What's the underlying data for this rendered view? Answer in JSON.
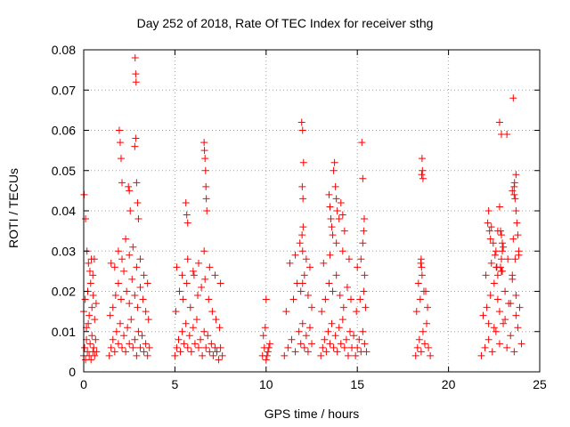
{
  "chart_data": {
    "type": "scatter",
    "title": "Day 252 of 2018, Rate Of TEC Index for receiver sthg",
    "xlabel": "GPS time / hours",
    "ylabel": "ROTI / TECUs",
    "xlim": [
      0,
      25
    ],
    "ylim": [
      0,
      0.08
    ],
    "xticks": [
      0,
      5,
      10,
      15,
      20,
      25
    ],
    "yticks": [
      0,
      0.01,
      0.02,
      0.03,
      0.04,
      0.05,
      0.06,
      0.07,
      0.08
    ],
    "ytick_labels": [
      "0",
      "0.01",
      "0.02",
      "0.03",
      "0.04",
      "0.05",
      "0.06",
      "0.07",
      "0.08"
    ],
    "grid": true,
    "marker": "+",
    "color": "#ff0000",
    "series": [
      {
        "name": "ROTI",
        "x": [
          0.0,
          0.05,
          0.1,
          0.15,
          0.2,
          0.25,
          0.3,
          0.35,
          0.4,
          0.45,
          0.5,
          0.55,
          0.6,
          0.65,
          0.7,
          0.0,
          0.08,
          0.15,
          0.22,
          0.3,
          0.38,
          0.45,
          0.52,
          0.6,
          0.68,
          0.02,
          0.1,
          0.18,
          0.26,
          0.34,
          0.42,
          0.5,
          0.58,
          1.4,
          1.5,
          1.6,
          1.7,
          1.8,
          1.9,
          2.0,
          2.1,
          2.2,
          2.3,
          2.4,
          2.5,
          2.6,
          2.7,
          2.8,
          2.9,
          3.0,
          3.1,
          3.2,
          3.3,
          3.4,
          3.5,
          3.6,
          1.45,
          1.6,
          1.75,
          1.9,
          2.05,
          2.2,
          2.35,
          2.5,
          2.65,
          2.8,
          2.95,
          3.1,
          3.25,
          3.4,
          3.55,
          1.5,
          1.7,
          1.9,
          2.1,
          2.3,
          2.5,
          2.7,
          2.9,
          3.1,
          3.3,
          3.5,
          1.95,
          2.0,
          2.05,
          2.1,
          2.45,
          2.5,
          2.55,
          2.8,
          2.85,
          2.9,
          2.95,
          3.0,
          2.82,
          2.85,
          2.87,
          5.0,
          5.1,
          5.2,
          5.3,
          5.4,
          5.5,
          5.6,
          5.7,
          5.8,
          5.9,
          6.0,
          6.1,
          6.2,
          6.3,
          6.4,
          6.5,
          6.6,
          6.7,
          6.8,
          6.9,
          7.0,
          7.1,
          7.2,
          7.3,
          7.4,
          7.5,
          7.6,
          5.05,
          5.25,
          5.45,
          5.65,
          5.85,
          6.05,
          6.25,
          6.45,
          6.65,
          6.85,
          7.05,
          7.25,
          7.45,
          5.1,
          5.4,
          5.7,
          6.0,
          6.3,
          6.6,
          6.9,
          7.2,
          7.5,
          5.6,
          5.65,
          5.7,
          6.6,
          6.62,
          6.65,
          6.68,
          6.7,
          6.72,
          6.75,
          9.8,
          9.9,
          10.0,
          10.1,
          10.2,
          9.85,
          10.05,
          10.15,
          9.95,
          10.0,
          11.0,
          11.2,
          11.4,
          11.6,
          11.8,
          11.9,
          12.0,
          12.1,
          12.2,
          12.3,
          12.4,
          12.5,
          11.1,
          11.5,
          11.7,
          11.9,
          12.1,
          12.3,
          12.5,
          11.3,
          11.6,
          11.85,
          12.0,
          12.2,
          12.4,
          11.95,
          12.0,
          12.05,
          11.98,
          12.02,
          12.03,
          11.97,
          12.0,
          13.0,
          13.1,
          13.2,
          13.3,
          13.4,
          13.5,
          13.6,
          13.7,
          13.8,
          13.9,
          14.0,
          14.1,
          14.2,
          14.3,
          14.4,
          14.5,
          14.6,
          14.7,
          14.8,
          13.05,
          13.25,
          13.45,
          13.65,
          13.85,
          14.05,
          14.25,
          14.45,
          14.65,
          13.15,
          13.5,
          13.85,
          14.2,
          14.55,
          13.45,
          13.5,
          13.55,
          13.6,
          13.65,
          13.7,
          13.75,
          13.8,
          13.85,
          13.9,
          14.0,
          14.1,
          14.2,
          14.3,
          14.9,
          15.0,
          15.1,
          15.2,
          15.3,
          15.4,
          15.5,
          14.95,
          15.15,
          15.35,
          15.45,
          15.0,
          15.2,
          15.4,
          15.3,
          15.35,
          15.38,
          15.3,
          15.25,
          18.2,
          18.3,
          18.4,
          18.5,
          18.6,
          18.7,
          18.8,
          18.9,
          19.0,
          18.25,
          18.45,
          18.65,
          18.85,
          18.35,
          18.55,
          18.75,
          18.5,
          18.52,
          18.55,
          18.57,
          18.6,
          18.53,
          18.48,
          21.8,
          22.0,
          22.2,
          22.4,
          22.6,
          22.8,
          23.0,
          23.2,
          23.4,
          23.6,
          23.8,
          24.0,
          21.9,
          22.1,
          22.3,
          22.5,
          22.7,
          22.9,
          23.1,
          23.3,
          23.5,
          23.7,
          23.9,
          22.05,
          22.35,
          22.65,
          22.95,
          23.25,
          23.55,
          23.85,
          22.2,
          22.5,
          22.8,
          23.1,
          23.4,
          23.7,
          22.15,
          22.2,
          22.25,
          22.3,
          22.6,
          22.7,
          22.8,
          22.9,
          23.0,
          23.6,
          23.65,
          23.7,
          23.75,
          23.8,
          23.7,
          23.85,
          22.35,
          22.45,
          22.55,
          22.62,
          22.7,
          22.85,
          22.9,
          22.95,
          23.5,
          23.65,
          22.8,
          22.9,
          23.2,
          22.85,
          22.95,
          23.55,
          23.6,
          23.62,
          23.5
        ],
        "y": [
          0.004,
          0.006,
          0.003,
          0.008,
          0.005,
          0.012,
          0.004,
          0.007,
          0.003,
          0.009,
          0.005,
          0.006,
          0.004,
          0.008,
          0.005,
          0.015,
          0.018,
          0.011,
          0.02,
          0.014,
          0.022,
          0.016,
          0.019,
          0.013,
          0.017,
          0.044,
          0.038,
          0.03,
          0.027,
          0.025,
          0.028,
          0.024,
          0.028,
          0.004,
          0.006,
          0.008,
          0.005,
          0.01,
          0.007,
          0.012,
          0.006,
          0.009,
          0.005,
          0.011,
          0.007,
          0.013,
          0.006,
          0.008,
          0.004,
          0.01,
          0.006,
          0.009,
          0.005,
          0.007,
          0.004,
          0.006,
          0.014,
          0.016,
          0.019,
          0.022,
          0.018,
          0.025,
          0.02,
          0.017,
          0.023,
          0.019,
          0.016,
          0.021,
          0.018,
          0.015,
          0.013,
          0.027,
          0.026,
          0.03,
          0.028,
          0.033,
          0.029,
          0.031,
          0.026,
          0.028,
          0.024,
          0.022,
          0.06,
          0.057,
          0.053,
          0.047,
          0.046,
          0.045,
          0.04,
          0.056,
          0.058,
          0.047,
          0.042,
          0.038,
          0.078,
          0.074,
          0.072,
          0.004,
          0.006,
          0.008,
          0.005,
          0.01,
          0.007,
          0.012,
          0.006,
          0.009,
          0.005,
          0.011,
          0.007,
          0.013,
          0.006,
          0.008,
          0.004,
          0.01,
          0.006,
          0.009,
          0.005,
          0.007,
          0.004,
          0.006,
          0.005,
          0.003,
          0.006,
          0.004,
          0.015,
          0.02,
          0.018,
          0.022,
          0.016,
          0.024,
          0.019,
          0.021,
          0.023,
          0.018,
          0.015,
          0.013,
          0.011,
          0.026,
          0.024,
          0.028,
          0.025,
          0.027,
          0.03,
          0.026,
          0.024,
          0.022,
          0.042,
          0.039,
          0.037,
          0.057,
          0.055,
          0.053,
          0.05,
          0.046,
          0.043,
          0.04,
          0.004,
          0.006,
          0.003,
          0.005,
          0.007,
          0.009,
          0.004,
          0.006,
          0.011,
          0.018,
          0.004,
          0.006,
          0.008,
          0.005,
          0.01,
          0.007,
          0.012,
          0.006,
          0.009,
          0.005,
          0.011,
          0.007,
          0.015,
          0.018,
          0.022,
          0.02,
          0.024,
          0.019,
          0.016,
          0.027,
          0.029,
          0.032,
          0.03,
          0.028,
          0.026,
          0.062,
          0.06,
          0.052,
          0.046,
          0.043,
          0.036,
          0.034,
          0.022,
          0.004,
          0.006,
          0.008,
          0.005,
          0.01,
          0.007,
          0.012,
          0.006,
          0.009,
          0.005,
          0.011,
          0.007,
          0.013,
          0.006,
          0.008,
          0.004,
          0.01,
          0.006,
          0.009,
          0.015,
          0.018,
          0.022,
          0.02,
          0.024,
          0.019,
          0.016,
          0.021,
          0.018,
          0.027,
          0.029,
          0.032,
          0.03,
          0.028,
          0.044,
          0.041,
          0.038,
          0.036,
          0.034,
          0.05,
          0.052,
          0.046,
          0.043,
          0.04,
          0.038,
          0.042,
          0.039,
          0.035,
          0.004,
          0.006,
          0.008,
          0.005,
          0.01,
          0.007,
          0.005,
          0.015,
          0.018,
          0.02,
          0.016,
          0.026,
          0.028,
          0.024,
          0.032,
          0.035,
          0.038,
          0.048,
          0.057,
          0.004,
          0.006,
          0.008,
          0.005,
          0.01,
          0.007,
          0.012,
          0.006,
          0.004,
          0.015,
          0.018,
          0.02,
          0.016,
          0.022,
          0.024,
          0.02,
          0.028,
          0.026,
          0.053,
          0.05,
          0.048,
          0.049,
          0.027,
          0.004,
          0.006,
          0.008,
          0.005,
          0.01,
          0.007,
          0.012,
          0.006,
          0.009,
          0.005,
          0.011,
          0.007,
          0.014,
          0.016,
          0.019,
          0.022,
          0.018,
          0.025,
          0.02,
          0.017,
          0.023,
          0.019,
          0.016,
          0.024,
          0.027,
          0.026,
          0.03,
          0.028,
          0.033,
          0.029,
          0.012,
          0.011,
          0.015,
          0.013,
          0.017,
          0.014,
          0.037,
          0.04,
          0.035,
          0.033,
          0.03,
          0.035,
          0.041,
          0.034,
          0.031,
          0.046,
          0.043,
          0.04,
          0.037,
          0.034,
          0.049,
          0.03,
          0.036,
          0.032,
          0.029,
          0.026,
          0.024,
          0.026,
          0.028,
          0.025,
          0.024,
          0.028,
          0.062,
          0.059,
          0.059,
          0.035,
          0.032,
          0.068,
          0.044,
          0.047,
          0.045
        ]
      }
    ]
  }
}
